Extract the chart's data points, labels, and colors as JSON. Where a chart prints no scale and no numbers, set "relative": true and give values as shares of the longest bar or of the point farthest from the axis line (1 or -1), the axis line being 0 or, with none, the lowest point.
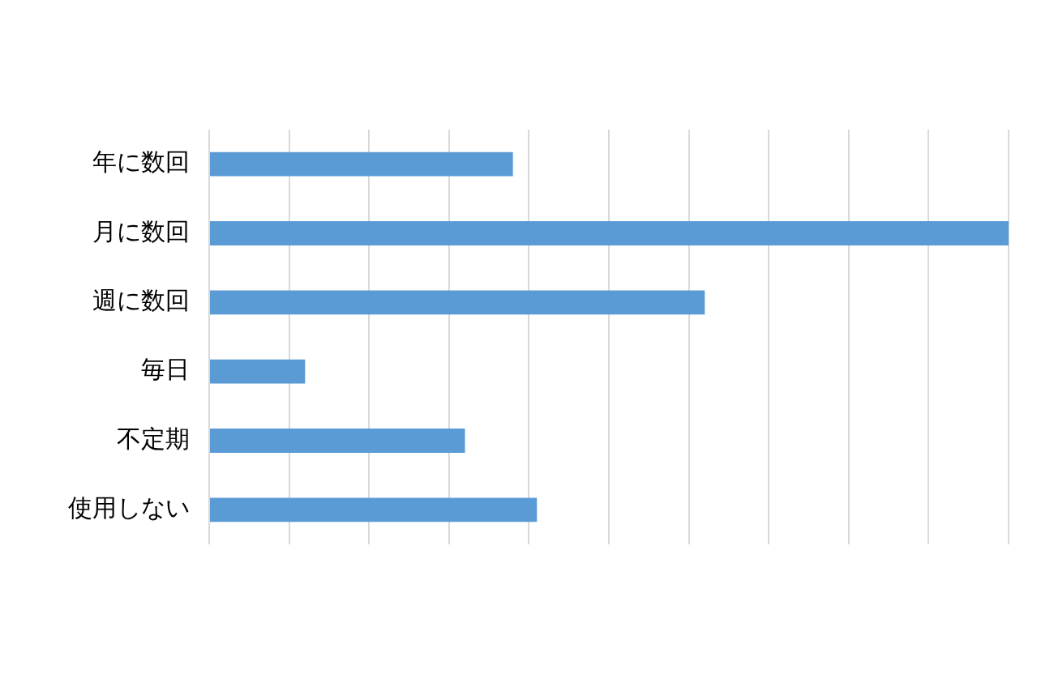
{
  "chart_data": {
    "type": "bar",
    "orientation": "horizontal",
    "relative": true,
    "grid": "x",
    "legend": false,
    "categories": [
      "年に数回",
      "月に数回",
      "週に数回",
      "毎日",
      "不定期",
      "使用しない"
    ],
    "values": [
      0.38,
      1,
      0.62,
      0.12,
      0.32,
      0.41
    ],
    "color": "#5b9bd5"
  }
}
